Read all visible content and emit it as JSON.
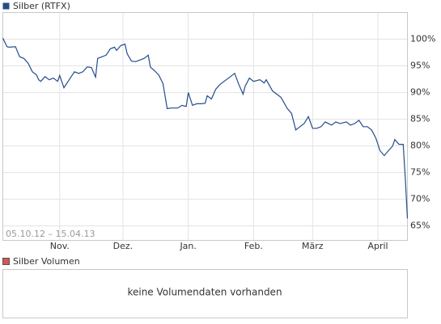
{
  "chart_data": {
    "type": "line",
    "date_range": "05.10.12 – 15.04.13",
    "x": [
      0,
      2,
      3,
      6,
      8,
      10,
      12,
      14,
      16,
      17,
      18,
      20,
      22,
      24,
      26,
      27,
      29,
      31,
      32,
      34,
      36,
      38,
      40,
      42,
      44,
      45,
      47,
      49,
      51,
      53,
      54,
      56,
      58,
      59,
      61,
      63,
      65,
      67,
      69,
      70,
      72,
      74,
      76,
      78,
      80,
      83,
      85,
      87,
      88,
      90,
      92,
      94,
      96,
      97,
      99,
      101,
      103,
      105,
      108,
      110,
      112,
      114,
      115,
      117,
      119,
      122,
      124,
      125,
      128,
      130,
      132,
      135,
      137,
      139,
      141,
      143,
      145,
      147,
      149,
      151,
      153,
      156,
      158,
      160,
      163,
      165,
      167,
      169,
      171,
      173,
      175,
      177,
      179,
      181,
      183,
      185,
      186,
      188,
      190,
      191,
      192
    ],
    "series": [
      {
        "name": "Silber (RTFX)",
        "color": "#234d8c",
        "values": [
          100.2,
          98.6,
          98.5,
          98.6,
          96.7,
          96.4,
          95.5,
          93.9,
          93.3,
          92.4,
          92.1,
          93.0,
          92.4,
          92.7,
          92.1,
          93.2,
          90.9,
          92.1,
          92.7,
          93.9,
          93.6,
          93.9,
          94.8,
          94.7,
          92.9,
          96.4,
          96.7,
          97.0,
          98.2,
          98.5,
          97.9,
          98.8,
          99.1,
          97.3,
          95.9,
          95.8,
          96.1,
          96.4,
          97.0,
          94.8,
          94.1,
          93.3,
          91.7,
          87.0,
          87.1,
          87.1,
          87.6,
          87.4,
          90.0,
          87.6,
          87.9,
          87.9,
          88.0,
          89.4,
          88.8,
          90.6,
          91.5,
          92.1,
          93.0,
          93.6,
          91.5,
          89.7,
          91.2,
          92.7,
          92.1,
          92.4,
          91.8,
          92.4,
          90.3,
          89.7,
          89.1,
          87.0,
          86.1,
          83.0,
          83.6,
          84.2,
          85.5,
          83.3,
          83.3,
          83.6,
          84.5,
          83.9,
          84.5,
          84.2,
          84.5,
          83.9,
          84.2,
          84.8,
          83.6,
          83.6,
          83.0,
          81.5,
          79.1,
          78.2,
          79.1,
          80.0,
          81.2,
          80.3,
          80.3,
          73.9,
          66.4
        ]
      }
    ],
    "xlim": [
      0,
      192
    ],
    "xticks": [
      {
        "value": 27,
        "label": "Nov."
      },
      {
        "value": 57,
        "label": "Dez."
      },
      {
        "value": 88,
        "label": "Jan."
      },
      {
        "value": 119,
        "label": "Feb."
      },
      {
        "value": 147,
        "label": "März"
      },
      {
        "value": 178,
        "label": "April"
      }
    ],
    "ylim": [
      62.3,
      105
    ],
    "yticks": [
      {
        "value": 65,
        "label": "65%"
      },
      {
        "value": 70,
        "label": "70%"
      },
      {
        "value": 75,
        "label": "75%"
      },
      {
        "value": 80,
        "label": "80%"
      },
      {
        "value": 85,
        "label": "85%"
      },
      {
        "value": 90,
        "label": "90%"
      },
      {
        "value": 95,
        "label": "95%"
      },
      {
        "value": 100,
        "label": "100%"
      }
    ],
    "grid": true,
    "volume_panel": {
      "legend": "Silber Volumen",
      "color": "#d65656",
      "message": "keine Volumendaten vorhanden"
    }
  }
}
